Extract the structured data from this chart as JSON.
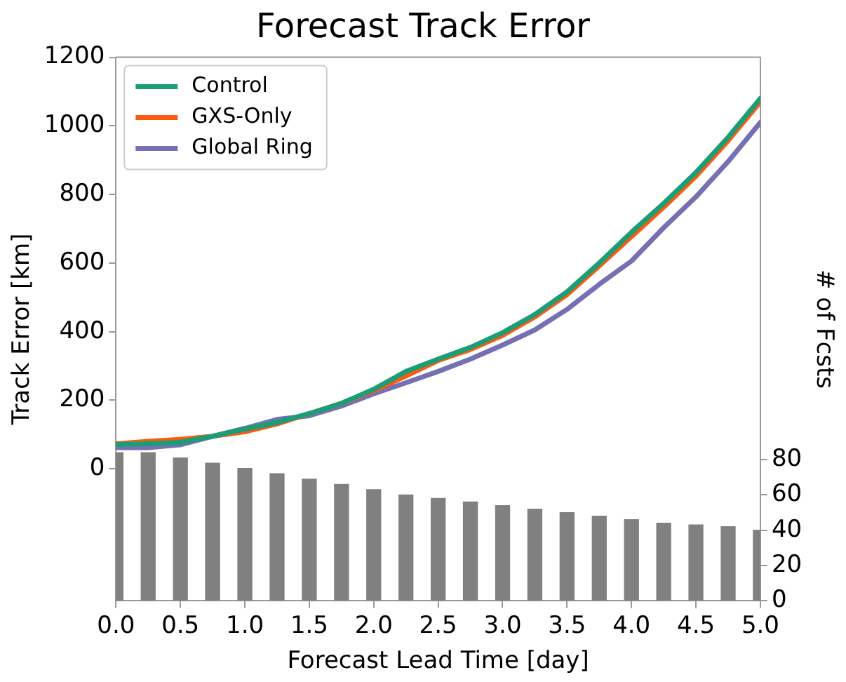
{
  "chart_data": {
    "type": "line",
    "title": "Forecast Track Error",
    "xlabel": "Forecast Lead Time [day]",
    "ylabel": "Track Error [km]",
    "y2label": "# of Fcsts",
    "x": [
      0,
      0.25,
      0.5,
      0.75,
      1.0,
      1.25,
      1.5,
      1.75,
      2.0,
      2.25,
      2.5,
      2.75,
      3.0,
      3.25,
      3.5,
      3.75,
      4.0,
      4.25,
      4.5,
      4.75,
      5.0
    ],
    "series": [
      {
        "name": "Control",
        "color": "#1b9e77",
        "values": [
          71,
          73,
          77,
          95,
          116,
          135,
          161,
          191,
          232,
          284,
          320,
          354,
          397,
          450,
          516,
          600,
          690,
          774,
          864,
          967,
          1080
        ]
      },
      {
        "name": "GXS-Only",
        "color": "#fa5b0f",
        "values": [
          73,
          80,
          86,
          95,
          108,
          131,
          161,
          191,
          228,
          271,
          316,
          348,
          389,
          443,
          508,
          592,
          677,
          763,
          853,
          957,
          1070
        ]
      },
      {
        "name": "Global Ring",
        "color": "#7570b3",
        "values": [
          62,
          62,
          70,
          95,
          118,
          144,
          155,
          183,
          219,
          251,
          284,
          320,
          361,
          405,
          465,
          538,
          606,
          703,
          793,
          896,
          1010
        ]
      },
      {
        "type": "bar",
        "axis": "y2",
        "color": "#808080",
        "values": [
          84,
          84,
          81,
          78,
          75,
          72,
          69,
          66,
          63,
          60,
          58,
          56,
          54,
          52,
          50,
          48,
          46,
          44,
          43,
          42,
          40
        ]
      }
    ],
    "xlim": [
      0,
      5
    ],
    "xticks": [
      {
        "value": 0,
        "label": "0.0"
      },
      0.5,
      {
        "value": 1,
        "label": "1.0"
      },
      1.5,
      {
        "value": 2,
        "label": "2.0"
      },
      2.5,
      {
        "value": 3,
        "label": "3.0"
      },
      3.5,
      {
        "value": 4,
        "label": "4.0"
      },
      4.5,
      {
        "value": 5,
        "label": "5.0"
      }
    ],
    "ylim": [
      -385,
      1200
    ],
    "yticks": [
      0,
      200,
      400,
      600,
      800,
      1000,
      1200
    ],
    "y2lim": [
      0,
      308
    ],
    "y2ticks": [
      0,
      20,
      40,
      60,
      80
    ],
    "legend": "top left",
    "grid": false,
    "line_style": "solid",
    "marker": "none"
  }
}
